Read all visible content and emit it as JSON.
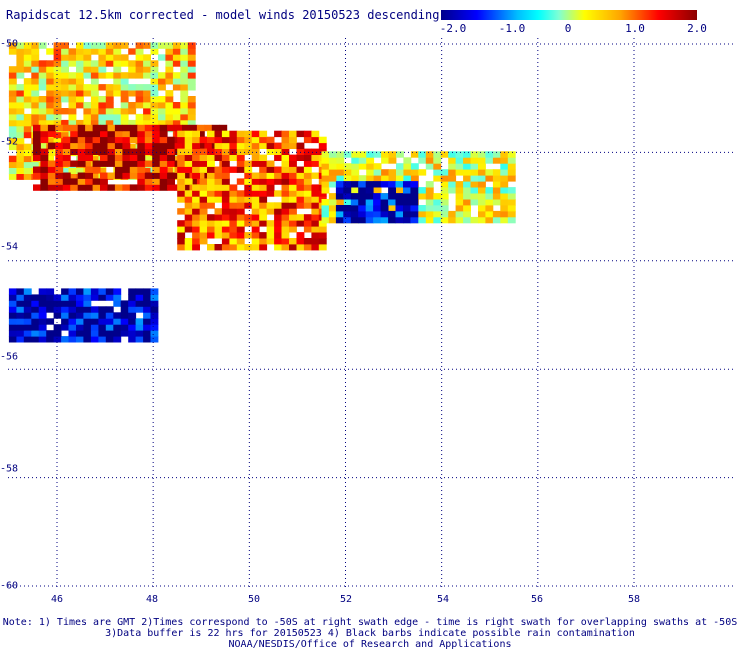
{
  "title": "Rapidscat 12.5km corrected - model winds 20150523 descending",
  "colorbar": {
    "ticks": [
      "-2.0",
      "-1.0",
      "0",
      "1.0",
      "2.0"
    ],
    "colors": [
      "#00008b",
      "#0000ff",
      "#00bfff",
      "#00ffff",
      "#7fffd4",
      "#ffff00",
      "#ffa500",
      "#ff0000",
      "#8b0000"
    ]
  },
  "lat_labels": [
    "-50",
    "-52",
    "-54",
    "-56",
    "-58",
    "-60"
  ],
  "lon_labels": [
    "46",
    "48",
    "50",
    "52",
    "54",
    "56",
    "58"
  ],
  "notes": {
    "line1": "Note: 1) Times are GMT 2)Times correspond to -50S at right swath edge - time is right swath for overlapping swaths at -50S",
    "line2": "3)Data buffer is 22 hrs for 20150523 4) Black barbs indicate possible rain contamination",
    "line3": "NOAA/NESDIS/Office of Research and Applications"
  },
  "chart_data": {
    "type": "heatmap",
    "title": "Rapidscat 12.5km corrected - model winds 20150523 descending",
    "lat_range": [
      -60,
      -50
    ],
    "lon_range": [
      45,
      59.5
    ],
    "color_range": [
      -2.0,
      2.0
    ],
    "regions": [
      {
        "lat_range": [
          -52.5,
          -50.0
        ],
        "lon_range": [
          45.0,
          48.8
        ],
        "typical_value": 0.7
      },
      {
        "lat_range": [
          -52.7,
          -51.5
        ],
        "lon_range": [
          45.5,
          49.5
        ],
        "typical_value": 1.7
      },
      {
        "lat_range": [
          -53.8,
          -51.7
        ],
        "lon_range": [
          48.5,
          51.5
        ],
        "typical_value": 1.2
      },
      {
        "lat_range": [
          -53.3,
          -52.0
        ],
        "lon_range": [
          51.5,
          55.5
        ],
        "typical_value": 0.4
      },
      {
        "lat_range": [
          -53.3,
          -52.6
        ],
        "lon_range": [
          51.8,
          53.5
        ],
        "typical_value": -1.7
      },
      {
        "lat_range": [
          -55.5,
          -54.6
        ],
        "lon_range": [
          45.0,
          48.0
        ],
        "typical_value": -1.8
      }
    ]
  }
}
